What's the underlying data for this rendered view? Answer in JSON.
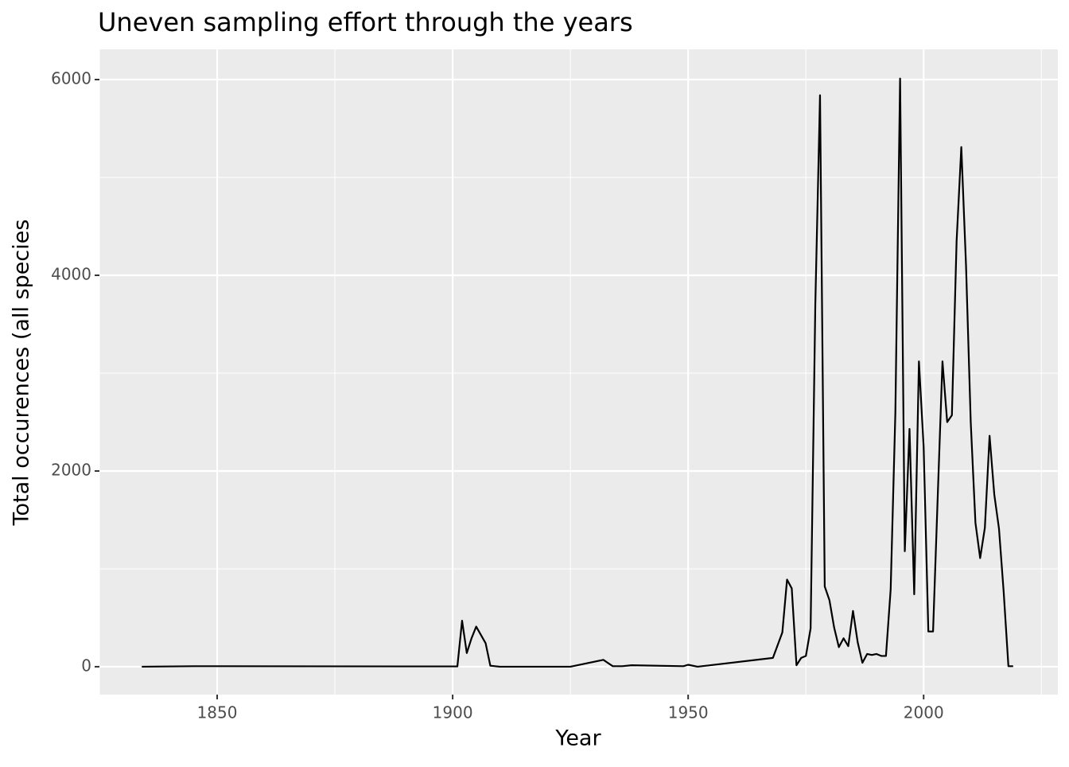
{
  "chart_data": {
    "type": "line",
    "title": "Uneven sampling effort through the years",
    "x_label": "Year",
    "y_label": "Total occurences (all species",
    "x": [
      1834,
      1845,
      1850,
      1890,
      1901,
      1902,
      1903,
      1904,
      1905,
      1907,
      1908,
      1910,
      1925,
      1932,
      1934,
      1936,
      1938,
      1949,
      1950,
      1952,
      1968,
      1970,
      1971,
      1972,
      1973,
      1974,
      1975,
      1976,
      1977,
      1978,
      1979,
      1980,
      1981,
      1982,
      1983,
      1984,
      1985,
      1986,
      1987,
      1988,
      1989,
      1990,
      1991,
      1992,
      1993,
      1994,
      1995,
      1996,
      1997,
      1998,
      1999,
      2000,
      2001,
      2002,
      2003,
      2004,
      2005,
      2006,
      2007,
      2008,
      2009,
      2010,
      2011,
      2012,
      2013,
      2014,
      2015,
      2016,
      2017,
      2018,
      2019
    ],
    "series": [
      {
        "name": "Total occurences",
        "color": "#000000",
        "values": [
          0,
          5,
          5,
          3,
          3,
          470,
          140,
          290,
          410,
          240,
          10,
          0,
          0,
          70,
          5,
          5,
          15,
          5,
          20,
          0,
          90,
          350,
          890,
          800,
          15,
          90,
          110,
          390,
          3700,
          5840,
          820,
          680,
          400,
          200,
          290,
          210,
          570,
          250,
          40,
          130,
          120,
          130,
          110,
          110,
          790,
          2600,
          6010,
          1180,
          2430,
          740,
          3120,
          2250,
          360,
          360,
          1750,
          3120,
          2500,
          2570,
          4350,
          5310,
          4100,
          2500,
          1470,
          1110,
          1420,
          2360,
          1760,
          1410,
          760,
          5,
          5
        ]
      }
    ],
    "xlim": [
      1825,
      2028.5
    ],
    "ylim": [
      -285,
      6309
    ],
    "xticks": [
      1850,
      1900,
      1950,
      2000
    ],
    "yticks": [
      0,
      2000,
      4000,
      6000
    ],
    "grid": true
  }
}
